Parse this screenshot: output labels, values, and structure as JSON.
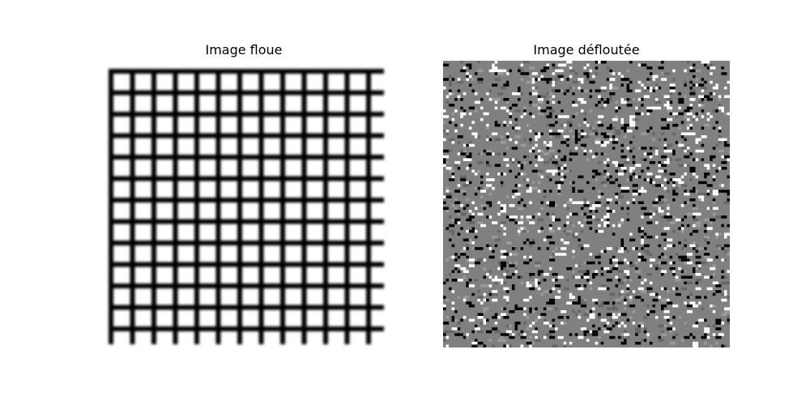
{
  "figure": {
    "left_title": "Image floue",
    "right_title": "Image défloutée"
  },
  "left_image": {
    "description_kind": "blurred-grid",
    "grid_color": "#000000",
    "background_color": "#ffffff"
  },
  "right_image": {
    "description_kind": "salt-and-pepper-noise",
    "base_color": "#808080",
    "dark_color": "#000000",
    "light_color": "#ffffff"
  }
}
